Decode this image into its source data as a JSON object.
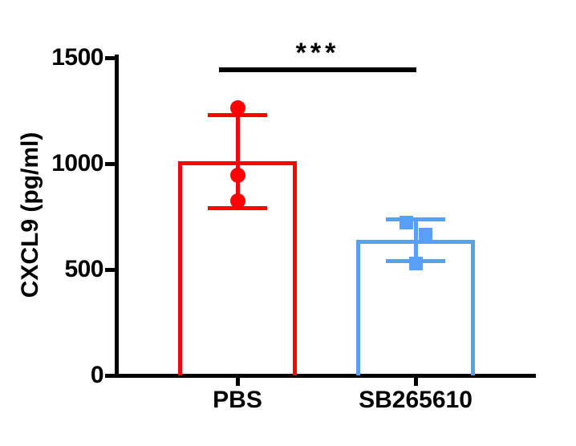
{
  "chart_data": {
    "type": "bar",
    "title": "",
    "ylabel": "CXCL9 (pg/ml)",
    "xlabel": "",
    "ylim": [
      0,
      1500
    ],
    "yticks": [
      "0",
      "500",
      "1000",
      "1500"
    ],
    "ytick_values": [
      0,
      500,
      1000,
      1500
    ],
    "grid": false,
    "legend": "none",
    "categories": [
      "PBS",
      "SB265610"
    ],
    "series": [
      {
        "name": "PBS",
        "mean": 1010,
        "err_low": 790,
        "err_high": 1230,
        "points": [
          {
            "value": 1265,
            "dx": 0
          },
          {
            "value": 945,
            "dx": 0
          },
          {
            "value": 825,
            "dx": 0
          }
        ],
        "color": "#fa0505",
        "marker": "circle"
      },
      {
        "name": "SB265610",
        "mean": 640,
        "err_low": 540,
        "err_high": 735,
        "points": [
          {
            "value": 720,
            "dx": -12
          },
          {
            "value": 665,
            "dx": 12
          },
          {
            "value": 527,
            "dx": 0
          }
        ],
        "color": "#57a0f6",
        "marker": "square"
      }
    ],
    "significance": {
      "label": "***",
      "between": [
        "PBS",
        "SB265610"
      ]
    },
    "axis_color": "#000000",
    "background_color": "#ffffff"
  }
}
